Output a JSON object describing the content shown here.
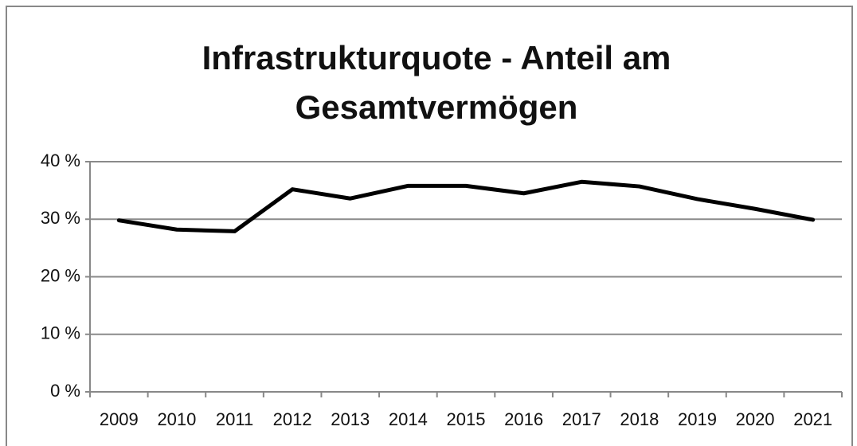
{
  "chart_data": {
    "type": "line",
    "title": "Infrastrukturquote - Anteil am Gesamtvermögen",
    "categories": [
      "2009",
      "2010",
      "2011",
      "2012",
      "2013",
      "2014",
      "2015",
      "2016",
      "2017",
      "2018",
      "2019",
      "2020",
      "2021"
    ],
    "series": [
      {
        "color": "#000000",
        "values": [
          29.8,
          28.2,
          27.9,
          35.2,
          33.6,
          35.8,
          35.8,
          34.5,
          36.5,
          35.7,
          33.5,
          31.8,
          29.9
        ]
      }
    ],
    "ylim": [
      0,
      40
    ],
    "yticks": [
      {
        "value": 0,
        "label": "0 %"
      },
      {
        "value": 10,
        "label": "10 %"
      },
      {
        "value": 20,
        "label": "20 %"
      },
      {
        "value": 30,
        "label": "30 %"
      },
      {
        "value": 40,
        "label": "40 %"
      }
    ],
    "grid": true
  }
}
